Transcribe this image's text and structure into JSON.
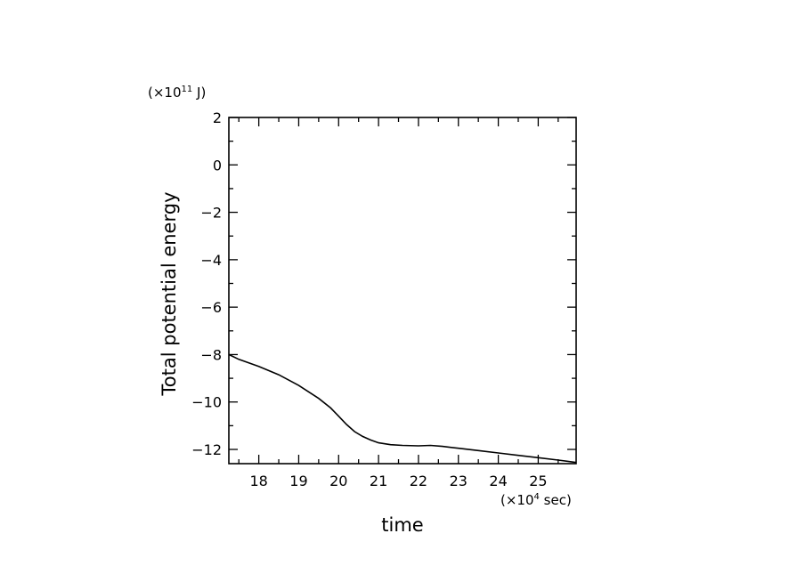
{
  "chart_data": {
    "type": "line",
    "title": "",
    "xlabel": "time",
    "ylabel": "Total potential energy",
    "x_unit_prefix": "(×10",
    "x_unit_exponent": "4",
    "x_unit_suffix": " sec)",
    "y_unit_prefix": "(×10",
    "y_unit_exponent": "11",
    "y_unit_suffix": " J)",
    "xlim": [
      17.25,
      25.95
    ],
    "ylim": [
      -12.6,
      2
    ],
    "x_ticks": [
      18,
      19,
      20,
      21,
      22,
      23,
      24,
      25
    ],
    "x_tick_labels": [
      "18",
      "19",
      "20",
      "21",
      "22",
      "23",
      "24",
      "25"
    ],
    "y_ticks": [
      2,
      0,
      -2,
      -4,
      -6,
      -8,
      -10,
      -12
    ],
    "y_tick_labels": [
      "2",
      "0",
      "−2",
      "−4",
      "−6",
      "−8",
      "−10",
      "−12"
    ],
    "grid": false,
    "line_color": "#000000",
    "series": [
      {
        "x": [
          17.25,
          17.5,
          18.0,
          18.5,
          19.0,
          19.5,
          19.8,
          20.0,
          20.2,
          20.4,
          20.6,
          20.8,
          21.0,
          21.3,
          21.6,
          22.0,
          22.3,
          22.6,
          23.0,
          23.5,
          24.0,
          24.5,
          25.0,
          25.5,
          25.95
        ],
        "y": [
          -8.0,
          -8.2,
          -8.5,
          -8.85,
          -9.3,
          -9.85,
          -10.25,
          -10.6,
          -10.95,
          -11.25,
          -11.45,
          -11.6,
          -11.72,
          -11.8,
          -11.83,
          -11.85,
          -11.83,
          -11.87,
          -11.95,
          -12.05,
          -12.15,
          -12.25,
          -12.35,
          -12.45,
          -12.55
        ]
      }
    ]
  }
}
